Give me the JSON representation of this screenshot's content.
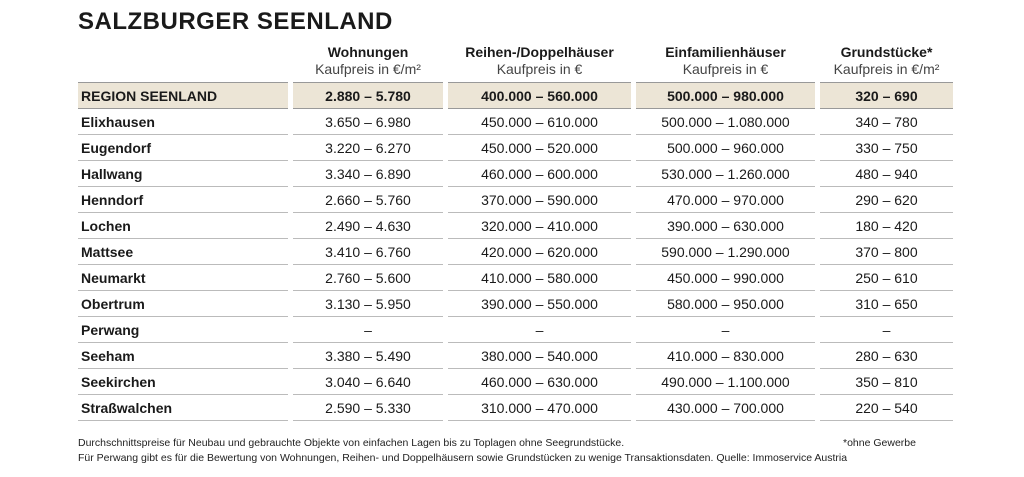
{
  "header": {
    "title": "SALZBURGER SEENLAND"
  },
  "table": {
    "columns": [
      {
        "title": "Wohnungen",
        "subtitle": "Kaufpreis in €/m²"
      },
      {
        "title": "Reihen-/Doppelhäuser",
        "subtitle": "Kaufpreis in €"
      },
      {
        "title": "Einfamilienhäuser",
        "subtitle": "Kaufpreis in €"
      },
      {
        "title": "Grundstücke*",
        "subtitle": "Kaufpreis in €/m²"
      }
    ],
    "region": {
      "label": "REGION SEENLAND",
      "cells": [
        "2.880 – 5.780",
        "400.000 – 560.000",
        "500.000 – 980.000",
        "320 – 690"
      ]
    },
    "rows": [
      {
        "label": "Elixhausen",
        "cells": [
          "3.650 – 6.980",
          "450.000 – 610.000",
          "500.000 – 1.080.000",
          "340 – 780"
        ]
      },
      {
        "label": "Eugendorf",
        "cells": [
          "3.220 – 6.270",
          "450.000 – 520.000",
          "500.000 – 960.000",
          "330 – 750"
        ]
      },
      {
        "label": "Hallwang",
        "cells": [
          "3.340 – 6.890",
          "460.000 – 600.000",
          "530.000 – 1.260.000",
          "480 – 940"
        ]
      },
      {
        "label": "Henndorf",
        "cells": [
          "2.660 – 5.760",
          "370.000 – 590.000",
          "470.000 – 970.000",
          "290 – 620"
        ]
      },
      {
        "label": "Lochen",
        "cells": [
          "2.490 – 4.630",
          "320.000 – 410.000",
          "390.000 – 630.000",
          "180 – 420"
        ]
      },
      {
        "label": "Mattsee",
        "cells": [
          "3.410 – 6.760",
          "420.000 – 620.000",
          "590.000 – 1.290.000",
          "370 – 800"
        ]
      },
      {
        "label": "Neumarkt",
        "cells": [
          "2.760 – 5.600",
          "410.000 – 580.000",
          "450.000 – 990.000",
          "250 – 610"
        ]
      },
      {
        "label": "Obertrum",
        "cells": [
          "3.130 – 5.950",
          "390.000 – 550.000",
          "580.000 – 950.000",
          "310 – 650"
        ]
      },
      {
        "label": "Perwang",
        "cells": [
          "–",
          "–",
          "–",
          "–"
        ]
      },
      {
        "label": "Seeham",
        "cells": [
          "3.380 – 5.490",
          "380.000 – 540.000",
          "410.000 – 830.000",
          "280 – 630"
        ]
      },
      {
        "label": "Seekirchen",
        "cells": [
          "3.040 – 6.640",
          "460.000 – 630.000",
          "490.000 – 1.100.000",
          "350 – 810"
        ]
      },
      {
        "label": "Straßwalchen",
        "cells": [
          "2.590 – 5.330",
          "310.000 – 470.000",
          "430.000 – 700.000",
          "220 – 540"
        ]
      }
    ]
  },
  "footnotes": {
    "line1": "Durchschnittspreise für Neubau und gebrauchte Objekte von einfachen Lagen bis zu Toplagen ohne Seegrundstücke.",
    "note": "*ohne Gewerbe",
    "line2": "Für Perwang gibt es für die Bewertung von Wohnungen, Reihen- und Doppelhäusern sowie Grundstücken zu wenige Transaktionsdaten. Quelle: Immoservice Austria"
  }
}
